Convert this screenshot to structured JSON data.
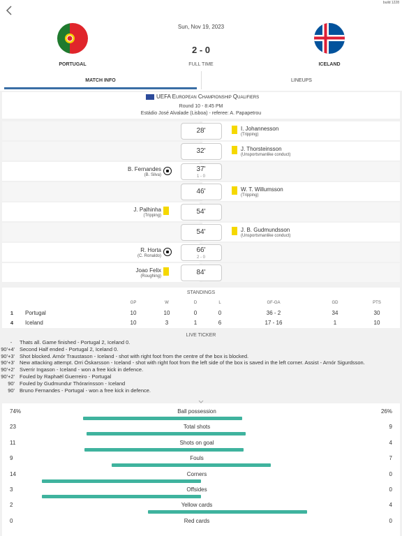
{
  "build": "build 1228",
  "header": {
    "date": "Sun, Nov 19, 2023",
    "score": "2 - 0",
    "status": "FULL TIME",
    "home_team": "PORTUGAL",
    "away_team": "ICELAND"
  },
  "tabs": [
    "MATCH INFO",
    "LINEUPS"
  ],
  "competition": {
    "name": "UEFA European Championship Qualifiers",
    "round": "Round 10 - 8:45 PM",
    "venue": "Estádio José Alvalade (Lisboa) - referee: A. Papapetrou"
  },
  "events": [
    {
      "minute": "28'",
      "side": "away",
      "icon": "yellow",
      "player": "I. Johannesson",
      "detail": "(Tripping)"
    },
    {
      "minute": "32'",
      "side": "away",
      "icon": "yellow",
      "player": "J. Thorsteinsson",
      "detail": "(Unsportsmanlike conduct)"
    },
    {
      "minute": "37'",
      "side": "home",
      "icon": "goal",
      "player": "B. Fernandes",
      "detail": "(B. Silva)",
      "score": "1 - 0"
    },
    {
      "minute": "46'",
      "side": "away",
      "icon": "yellow",
      "player": "W. T. Willumsson",
      "detail": "(Tripping)"
    },
    {
      "minute": "54'",
      "side": "home",
      "icon": "yellow",
      "player": "J. Palhinha",
      "detail": "(Tripping)"
    },
    {
      "minute": "54'",
      "side": "away",
      "icon": "yellow",
      "player": "J. B. Gudmundsson",
      "detail": "(Unsportsmanlike conduct)"
    },
    {
      "minute": "66'",
      "side": "home",
      "icon": "goal",
      "player": "R. Horta",
      "detail": "(C. Ronaldo)",
      "score": "2 - 0"
    },
    {
      "minute": "84'",
      "side": "home",
      "icon": "yellow",
      "player": "Joao Felix",
      "detail": "(Roughing)"
    }
  ],
  "standings": {
    "title": "STANDINGS",
    "columns": [
      "GP",
      "W",
      "D",
      "L",
      "GF-GA",
      "GD",
      "PTS"
    ],
    "rows": [
      {
        "rank": 1,
        "team": "Portugal",
        "cells": [
          10,
          10,
          0,
          0,
          "36 - 2",
          34,
          30
        ]
      },
      {
        "rank": 4,
        "team": "Iceland",
        "cells": [
          10,
          3,
          1,
          6,
          "17 - 16",
          1,
          10
        ]
      }
    ]
  },
  "ticker": {
    "title": "LIVE TICKER",
    "entries": [
      {
        "minute": "-",
        "text": "Thats all. Game finished - Portugal 2, Iceland 0."
      },
      {
        "minute": "90'+4'",
        "text": "Second Half ended - Portugal 2, Iceland 0."
      },
      {
        "minute": "90'+3'",
        "text": "Shot blocked. Arnór Traustason - Iceland - shot with right foot from the centre of the box is blocked."
      },
      {
        "minute": "90'+3'",
        "text": "New attacking attempt. Orri Óskarsson - Iceland - shot with right foot from the left side of the box is saved in the left corner. Assist - Arnór Sigurdsson."
      },
      {
        "minute": "90'+2'",
        "text": "Sverrir Ingason - Iceland - won a free kick in defence."
      },
      {
        "minute": "90'+2'",
        "text": "Fouled by Raphaël Guerreiro - Portugal"
      },
      {
        "minute": "90'",
        "text": "Fouled by Gudmundur Thórarinsson - Iceland"
      },
      {
        "minute": "90'",
        "text": "Bruno Fernandes - Portugal - won a free kick in defence."
      }
    ]
  },
  "stats": [
    {
      "label": "Ball possession",
      "home": {
        "value": 74,
        "label": "74%"
      },
      "away": {
        "value": 26,
        "label": "26%"
      }
    },
    {
      "label": "Total shots",
      "home": 23,
      "away": 9
    },
    {
      "label": "Shots on goal",
      "home": 11,
      "away": 4
    },
    {
      "label": "Fouls",
      "home": 9,
      "away": 7
    },
    {
      "label": "Corners",
      "home": 14,
      "away": 0
    },
    {
      "label": "Offsides",
      "home": 3,
      "away": 0
    },
    {
      "label": "Yellow cards",
      "home": 2,
      "away": 4
    },
    {
      "label": "Red cards",
      "home": 0,
      "away": 0
    }
  ]
}
